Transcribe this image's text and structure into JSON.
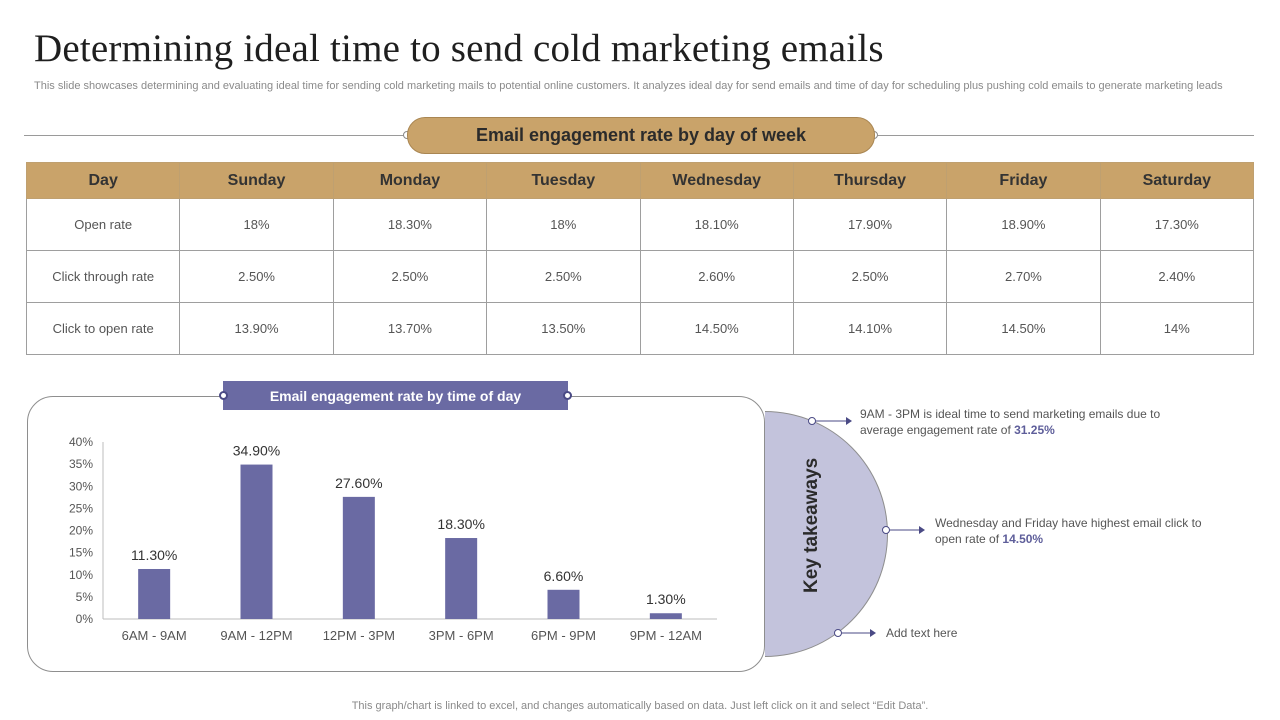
{
  "slide": {
    "title": "Determining ideal time to send cold marketing emails",
    "subtitle": "This slide showcases determining and evaluating ideal time for sending cold marketing mails to potential online customers. It analyzes ideal day for send emails and time of day for scheduling plus pushing cold emails to generate marketing leads",
    "footer": "This graph/chart is linked to excel, and changes automatically based on data. Just left click on it and select “Edit Data”."
  },
  "week_table": {
    "header": "Email engagement rate by day of week",
    "columns": [
      "Day",
      "Sunday",
      "Monday",
      "Tuesday",
      "Wednesday",
      "Thursday",
      "Friday",
      "Saturday"
    ],
    "rows": [
      [
        "Open rate",
        "18%",
        "18.30%",
        "18%",
        "18.10%",
        "17.90%",
        "18.90%",
        "17.30%"
      ],
      [
        "Click through rate",
        "2.50%",
        "2.50%",
        "2.50%",
        "2.60%",
        "2.50%",
        "2.70%",
        "2.40%"
      ],
      [
        "Click to open rate",
        "13.90%",
        "13.70%",
        "13.50%",
        "14.50%",
        "14.10%",
        "14.50%",
        "14%"
      ]
    ]
  },
  "chart_data": {
    "type": "bar",
    "title": "Email engagement rate by time of day",
    "categories": [
      "6AM - 9AM",
      "9AM - 12PM",
      "12PM - 3PM",
      "3PM - 6PM",
      "6PM - 9PM",
      "9PM - 12AM"
    ],
    "values": [
      11.3,
      34.9,
      27.6,
      18.3,
      6.6,
      1.3
    ],
    "data_labels": [
      "11.30%",
      "34.90%",
      "27.60%",
      "18.30%",
      "6.60%",
      "1.30%"
    ],
    "yticks": [
      "0%",
      "5%",
      "10%",
      "15%",
      "20%",
      "25%",
      "30%",
      "35%",
      "40%"
    ],
    "ylim": [
      0,
      40
    ],
    "grid": false,
    "bar_color": "#6a6aa3"
  },
  "key_takeaways": {
    "label": "Key takeaways",
    "items": [
      {
        "text": "9AM - 3PM is ideal time to send marketing emails due to average engagement rate of ",
        "highlight": "31.25%"
      },
      {
        "text": "Wednesday and Friday have highest email click to open rate of ",
        "highlight": "14.50%"
      },
      {
        "text": "Add text here",
        "highlight": ""
      }
    ]
  }
}
